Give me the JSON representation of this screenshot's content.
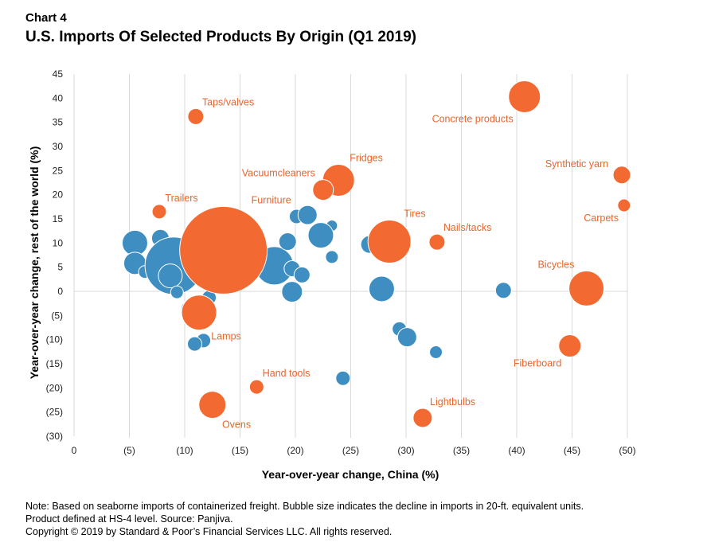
{
  "header": {
    "chart_label": "Chart 4",
    "title": "U.S. Imports Of Selected Products By Origin (Q1 2019)"
  },
  "notes": {
    "line1": "Note: Based on seaborne imports of containerized freight. Bubble size indicates the decline in imports in 20-ft. equivalent units.",
    "line2": "Product defined at HS-4 level. Source: Panjiva.",
    "line3": "Copyright © 2019 by Standard & Poor’s Financial Services LLC. All rights reserved."
  },
  "colors": {
    "highlight": "#F26A32",
    "other": "#3E8EC2",
    "grid": "#d9d9d9",
    "label": "#E8652D"
  },
  "chart_data": {
    "type": "scatter",
    "variant": "bubble",
    "xlabel": "Year-over-year change, China (%)",
    "ylabel": "Year-over-year change, rest of the world (%)",
    "xlim": [
      0,
      -50
    ],
    "ylim": [
      -30,
      45
    ],
    "x_ticks": [
      0,
      -5,
      -10,
      -15,
      -20,
      -25,
      -30,
      -35,
      -40,
      -45,
      -50
    ],
    "x_tick_labels": [
      "0",
      "(5)",
      "(10)",
      "(15)",
      "(20)",
      "(25)",
      "(30)",
      "(35)",
      "(40)",
      "(45)",
      "(50)"
    ],
    "y_ticks": [
      45,
      40,
      35,
      30,
      25,
      20,
      15,
      10,
      5,
      0,
      -5,
      -10,
      -15,
      -20,
      -25,
      -30
    ],
    "y_tick_labels": [
      "45",
      "40",
      "35",
      "30",
      "25",
      "20",
      "15",
      "10",
      "5",
      "0",
      "(5)",
      "(10)",
      "(15)",
      "(20)",
      "(25)",
      "(30)"
    ],
    "grid": {
      "vertical": true,
      "horizontal": false
    },
    "highlighted": [
      {
        "label": "Taps/valves",
        "x": -11.0,
        "y": 36.2,
        "size": 10,
        "label_pos": "above-right"
      },
      {
        "label": "Concrete products",
        "x": -40.7,
        "y": 40.3,
        "size": 20,
        "label_pos": "below-left"
      },
      {
        "label": "Synthetic yarn",
        "x": -49.5,
        "y": 24.1,
        "size": 11,
        "label_pos": "left"
      },
      {
        "label": "Carpets",
        "x": -49.7,
        "y": 17.8,
        "size": 8,
        "label_pos": "below-left"
      },
      {
        "label": "Fridges",
        "x": -23.9,
        "y": 23.0,
        "size": 20,
        "label_pos": "above-right"
      },
      {
        "label": "Vacuumcleaners",
        "x": -22.5,
        "y": 21.0,
        "size": 13,
        "label_pos": "above-left"
      },
      {
        "label": "Trailers",
        "x": -7.7,
        "y": 16.5,
        "size": 9,
        "label_pos": "above-right"
      },
      {
        "label": "Furniture",
        "x": -13.5,
        "y": 8.5,
        "size": 55,
        "label_pos": "above-right"
      },
      {
        "label": "Tires",
        "x": -28.5,
        "y": 10.3,
        "size": 27,
        "label_pos": "above-right"
      },
      {
        "label": "Nails/tacks",
        "x": -32.8,
        "y": 10.2,
        "size": 10,
        "label_pos": "above-right"
      },
      {
        "label": "Bicycles",
        "x": -46.3,
        "y": 0.6,
        "size": 22,
        "label_pos": "above-left"
      },
      {
        "label": "Lamps",
        "x": -11.3,
        "y": -4.4,
        "size": 22,
        "label_pos": "below-right"
      },
      {
        "label": "Fiberboard",
        "x": -44.8,
        "y": -11.3,
        "size": 14,
        "label_pos": "below-left"
      },
      {
        "label": "Hand tools",
        "x": -16.5,
        "y": -19.8,
        "size": 9,
        "label_pos": "above-right"
      },
      {
        "label": "Ovens",
        "x": -12.5,
        "y": -23.5,
        "size": 17,
        "label_pos": "below-right"
      },
      {
        "label": "Lightbulbs",
        "x": -31.5,
        "y": -26.2,
        "size": 12,
        "label_pos": "above-right"
      }
    ],
    "others": [
      {
        "x": -5.5,
        "y": 10.0,
        "size": 16
      },
      {
        "x": -7.8,
        "y": 11.0,
        "size": 11
      },
      {
        "x": -5.5,
        "y": 5.8,
        "size": 14
      },
      {
        "x": -6.4,
        "y": 4.0,
        "size": 8
      },
      {
        "x": -9.0,
        "y": 5.3,
        "size": 36
      },
      {
        "x": -8.7,
        "y": 3.2,
        "size": 15
      },
      {
        "x": -9.3,
        "y": -0.2,
        "size": 8
      },
      {
        "x": -10.6,
        "y": -3.8,
        "size": 13
      },
      {
        "x": -12.2,
        "y": -1.3,
        "size": 9
      },
      {
        "x": -11.7,
        "y": -10.2,
        "size": 9
      },
      {
        "x": -10.9,
        "y": -10.9,
        "size": 9
      },
      {
        "x": -16.7,
        "y": 6.2,
        "size": 9
      },
      {
        "x": -18.1,
        "y": 5.3,
        "size": 24
      },
      {
        "x": -19.3,
        "y": 10.3,
        "size": 11
      },
      {
        "x": -19.7,
        "y": 4.7,
        "size": 10
      },
      {
        "x": -20.6,
        "y": 3.4,
        "size": 10
      },
      {
        "x": -19.7,
        "y": -0.1,
        "size": 13
      },
      {
        "x": -20.1,
        "y": 15.5,
        "size": 9
      },
      {
        "x": -21.1,
        "y": 15.8,
        "size": 12
      },
      {
        "x": -23.3,
        "y": 13.6,
        "size": 7
      },
      {
        "x": -22.3,
        "y": 11.6,
        "size": 16
      },
      {
        "x": -23.3,
        "y": 7.1,
        "size": 8
      },
      {
        "x": -26.7,
        "y": 9.7,
        "size": 11
      },
      {
        "x": -27.8,
        "y": 0.5,
        "size": 16
      },
      {
        "x": -29.4,
        "y": -7.8,
        "size": 9
      },
      {
        "x": -30.1,
        "y": -9.5,
        "size": 12
      },
      {
        "x": -32.7,
        "y": -12.6,
        "size": 8
      },
      {
        "x": -24.3,
        "y": -18.0,
        "size": 9
      },
      {
        "x": -38.8,
        "y": 0.2,
        "size": 10
      }
    ]
  }
}
